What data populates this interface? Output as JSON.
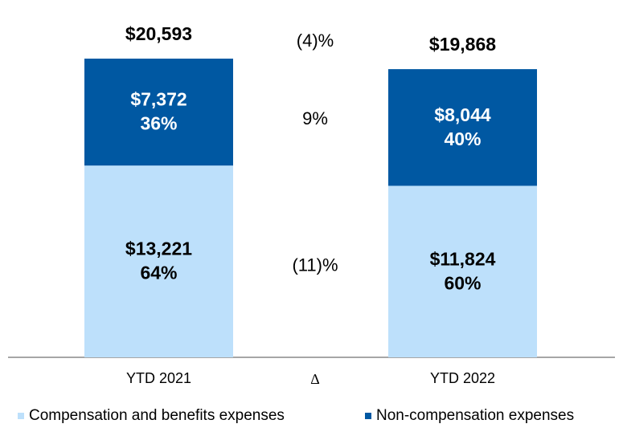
{
  "chart_data": {
    "type": "stacked_bar",
    "categories": [
      "YTD 2021",
      "YTD 2022"
    ],
    "delta_label": "∆",
    "totals": [
      20593,
      19868
    ],
    "total_labels": [
      "$20,593",
      "$19,868"
    ],
    "total_delta_label": "(4)%",
    "ylim": [
      0,
      22000
    ],
    "series": [
      {
        "name": "Compensation and benefits expenses",
        "color": "#bde0fb",
        "text_color": "#000000",
        "values": [
          13221,
          11824
        ],
        "value_labels": [
          "$13,221",
          "$11,824"
        ],
        "shares": [
          64,
          60
        ],
        "share_labels": [
          "64%",
          "60%"
        ],
        "delta_label": "(11)%"
      },
      {
        "name": "Non-compensation expenses",
        "color": "#0058a2",
        "text_color": "#ffffff",
        "values": [
          7372,
          8044
        ],
        "value_labels": [
          "$7,372",
          "$8,044"
        ],
        "shares": [
          36,
          40
        ],
        "share_labels": [
          "36%",
          "40%"
        ],
        "delta_label": "9%"
      }
    ]
  }
}
